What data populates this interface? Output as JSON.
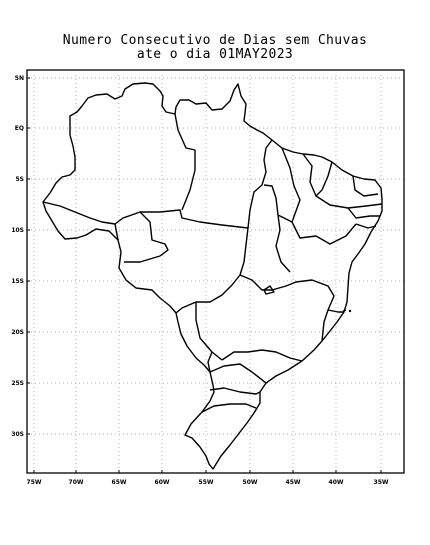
{
  "title": {
    "line1": "Numero Consecutivo de Dias sem Chuvas",
    "line2": "ate o dia 01MAY2023"
  },
  "map": {
    "lat_labels": [
      "5N",
      "EQ",
      "5S",
      "10S",
      "15S",
      "20S",
      "25S",
      "30S"
    ],
    "lon_labels": [
      "75W",
      "70W",
      "65W",
      "60W",
      "55W",
      "50W",
      "45W",
      "40W",
      "35W"
    ],
    "grid": "dotted",
    "region": "Brazil state boundaries"
  }
}
